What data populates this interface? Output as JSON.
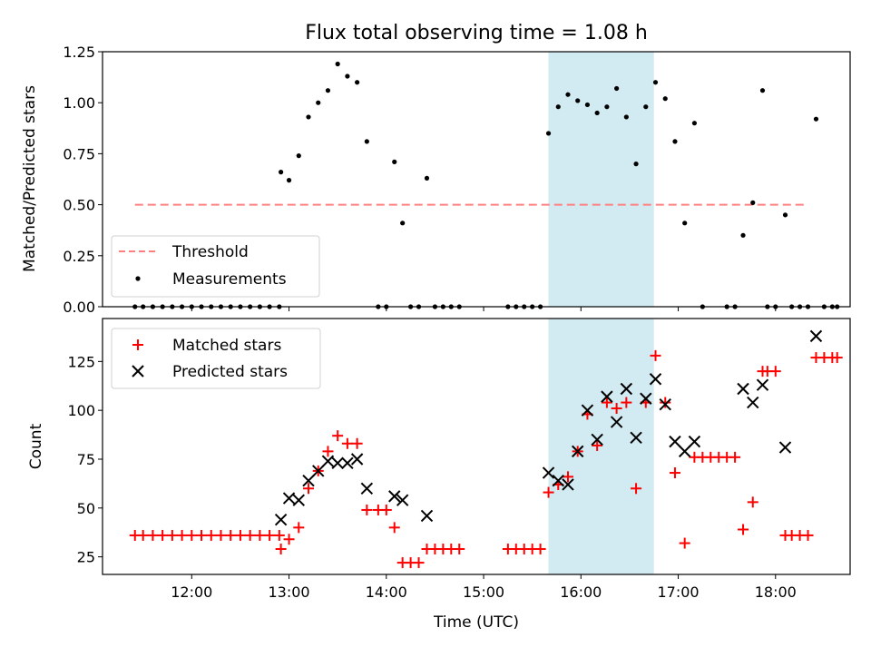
{
  "title": "Flux total observing time = 1.08 h",
  "xlabel": "Time (UTC)",
  "x_tick_labels": [
    "12:00",
    "13:00",
    "14:00",
    "15:00",
    "16:00",
    "17:00",
    "18:00"
  ],
  "colors": {
    "highlight": "#add8e6",
    "threshold": "#ff8080",
    "measurements": "#000000",
    "matched": "#ff0000",
    "predicted": "#000000"
  },
  "chart_data": [
    {
      "type": "scatter",
      "ylabel": "Matched/Predicted stars",
      "ylim": [
        0,
        1.25
      ],
      "xlim": [
        "11:05",
        "18:46"
      ],
      "y_tick_labels": [
        "0.00",
        "0.25",
        "0.50",
        "0.75",
        "1.00",
        "1.25"
      ],
      "grid": false,
      "legend_position": "lower-left",
      "highlight_span": {
        "start": "15:40",
        "end": "16:45"
      },
      "threshold": {
        "name": "Threshold",
        "value": 0.5,
        "x_range": [
          "11:25",
          "18:20"
        ],
        "style": "dashed"
      },
      "series": [
        {
          "name": "Measurements",
          "marker": "dot",
          "points": [
            [
              "11:25",
              0
            ],
            [
              "11:30",
              0
            ],
            [
              "11:36",
              0
            ],
            [
              "11:42",
              0
            ],
            [
              "11:48",
              0
            ],
            [
              "11:54",
              0
            ],
            [
              "12:00",
              0
            ],
            [
              "12:06",
              0
            ],
            [
              "12:12",
              0
            ],
            [
              "12:18",
              0
            ],
            [
              "12:24",
              0
            ],
            [
              "12:30",
              0
            ],
            [
              "12:36",
              0
            ],
            [
              "12:42",
              0
            ],
            [
              "12:48",
              0
            ],
            [
              "12:54",
              0
            ],
            [
              "12:55",
              0.66
            ],
            [
              "13:00",
              0.62
            ],
            [
              "13:06",
              0.74
            ],
            [
              "13:12",
              0.93
            ],
            [
              "13:18",
              1.0
            ],
            [
              "13:24",
              1.06
            ],
            [
              "13:30",
              1.19
            ],
            [
              "13:36",
              1.13
            ],
            [
              "13:42",
              1.1
            ],
            [
              "13:48",
              0.81
            ],
            [
              "13:55",
              0
            ],
            [
              "14:00",
              0
            ],
            [
              "14:05",
              0.71
            ],
            [
              "14:10",
              0.41
            ],
            [
              "14:15",
              0
            ],
            [
              "14:20",
              0
            ],
            [
              "14:25",
              0.63
            ],
            [
              "14:30",
              0
            ],
            [
              "14:35",
              0
            ],
            [
              "14:40",
              0
            ],
            [
              "14:45",
              0
            ],
            [
              "15:15",
              0
            ],
            [
              "15:20",
              0
            ],
            [
              "15:25",
              0
            ],
            [
              "15:30",
              0
            ],
            [
              "15:35",
              0
            ],
            [
              "15:40",
              0.85
            ],
            [
              "15:46",
              0.98
            ],
            [
              "15:52",
              1.04
            ],
            [
              "15:58",
              1.01
            ],
            [
              "16:04",
              0.99
            ],
            [
              "16:10",
              0.95
            ],
            [
              "16:16",
              0.98
            ],
            [
              "16:22",
              1.07
            ],
            [
              "16:28",
              0.93
            ],
            [
              "16:34",
              0.7
            ],
            [
              "16:40",
              0.98
            ],
            [
              "16:46",
              1.1
            ],
            [
              "16:52",
              1.02
            ],
            [
              "16:58",
              0.81
            ],
            [
              "17:04",
              0.41
            ],
            [
              "17:10",
              0.9
            ],
            [
              "17:15",
              0
            ],
            [
              "17:30",
              0
            ],
            [
              "17:35",
              0
            ],
            [
              "17:40",
              0.35
            ],
            [
              "17:46",
              0.51
            ],
            [
              "17:52",
              1.06
            ],
            [
              "17:55",
              0
            ],
            [
              "18:00",
              0
            ],
            [
              "18:06",
              0.45
            ],
            [
              "18:10",
              0
            ],
            [
              "18:15",
              0
            ],
            [
              "18:20",
              0
            ],
            [
              "18:25",
              0.92
            ],
            [
              "18:30",
              0
            ],
            [
              "18:35",
              0
            ],
            [
              "18:38",
              0
            ]
          ]
        }
      ]
    },
    {
      "type": "scatter",
      "ylabel": "Count",
      "ylim": [
        16,
        147
      ],
      "xlim": [
        "11:05",
        "18:46"
      ],
      "y_tick_labels": [
        "25",
        "50",
        "75",
        "100",
        "125"
      ],
      "grid": false,
      "legend_position": "upper-left",
      "highlight_span": {
        "start": "15:40",
        "end": "16:45"
      },
      "series": [
        {
          "name": "Matched stars",
          "marker": "plus",
          "points": [
            [
              "11:25",
              36
            ],
            [
              "11:30",
              36
            ],
            [
              "11:36",
              36
            ],
            [
              "11:42",
              36
            ],
            [
              "11:48",
              36
            ],
            [
              "11:54",
              36
            ],
            [
              "12:00",
              36
            ],
            [
              "12:06",
              36
            ],
            [
              "12:12",
              36
            ],
            [
              "12:18",
              36
            ],
            [
              "12:24",
              36
            ],
            [
              "12:30",
              36
            ],
            [
              "12:36",
              36
            ],
            [
              "12:42",
              36
            ],
            [
              "12:48",
              36
            ],
            [
              "12:54",
              36
            ],
            [
              "12:55",
              29
            ],
            [
              "13:00",
              34
            ],
            [
              "13:06",
              40
            ],
            [
              "13:12",
              60
            ],
            [
              "13:18",
              69
            ],
            [
              "13:24",
              79
            ],
            [
              "13:30",
              87
            ],
            [
              "13:36",
              83
            ],
            [
              "13:42",
              83
            ],
            [
              "13:48",
              49
            ],
            [
              "13:55",
              49
            ],
            [
              "14:00",
              49
            ],
            [
              "14:05",
              40
            ],
            [
              "14:10",
              22
            ],
            [
              "14:15",
              22
            ],
            [
              "14:20",
              22
            ],
            [
              "14:25",
              29
            ],
            [
              "14:30",
              29
            ],
            [
              "14:35",
              29
            ],
            [
              "14:40",
              29
            ],
            [
              "14:45",
              29
            ],
            [
              "15:15",
              29
            ],
            [
              "15:20",
              29
            ],
            [
              "15:25",
              29
            ],
            [
              "15:30",
              29
            ],
            [
              "15:35",
              29
            ],
            [
              "15:40",
              58
            ],
            [
              "15:46",
              62
            ],
            [
              "15:52",
              66
            ],
            [
              "15:58",
              79
            ],
            [
              "16:04",
              98
            ],
            [
              "16:10",
              82
            ],
            [
              "16:16",
              104
            ],
            [
              "16:22",
              101
            ],
            [
              "16:28",
              104
            ],
            [
              "16:34",
              60
            ],
            [
              "16:40",
              104
            ],
            [
              "16:46",
              128
            ],
            [
              "16:52",
              104
            ],
            [
              "16:58",
              68
            ],
            [
              "17:04",
              32
            ],
            [
              "17:10",
              76
            ],
            [
              "17:15",
              76
            ],
            [
              "17:20",
              76
            ],
            [
              "17:25",
              76
            ],
            [
              "17:30",
              76
            ],
            [
              "17:35",
              76
            ],
            [
              "17:40",
              39
            ],
            [
              "17:46",
              53
            ],
            [
              "17:52",
              120
            ],
            [
              "17:55",
              120
            ],
            [
              "18:00",
              120
            ],
            [
              "18:06",
              36
            ],
            [
              "18:10",
              36
            ],
            [
              "18:15",
              36
            ],
            [
              "18:20",
              36
            ],
            [
              "18:25",
              127
            ],
            [
              "18:30",
              127
            ],
            [
              "18:35",
              127
            ],
            [
              "18:38",
              127
            ]
          ]
        },
        {
          "name": "Predicted stars",
          "marker": "x",
          "points": [
            [
              "12:55",
              44
            ],
            [
              "13:00",
              55
            ],
            [
              "13:06",
              54
            ],
            [
              "13:12",
              64
            ],
            [
              "13:18",
              69
            ],
            [
              "13:24",
              74
            ],
            [
              "13:30",
              73
            ],
            [
              "13:36",
              73
            ],
            [
              "13:42",
              75
            ],
            [
              "13:48",
              60
            ],
            [
              "14:05",
              56
            ],
            [
              "14:10",
              54
            ],
            [
              "14:25",
              46
            ],
            [
              "15:40",
              68
            ],
            [
              "15:46",
              64
            ],
            [
              "15:52",
              62
            ],
            [
              "15:58",
              79
            ],
            [
              "16:04",
              100
            ],
            [
              "16:10",
              85
            ],
            [
              "16:16",
              107
            ],
            [
              "16:22",
              94
            ],
            [
              "16:28",
              111
            ],
            [
              "16:34",
              86
            ],
            [
              "16:40",
              106
            ],
            [
              "16:46",
              116
            ],
            [
              "16:52",
              103
            ],
            [
              "16:58",
              84
            ],
            [
              "17:04",
              79
            ],
            [
              "17:10",
              84
            ],
            [
              "17:40",
              111
            ],
            [
              "17:46",
              104
            ],
            [
              "17:52",
              113
            ],
            [
              "18:06",
              81
            ],
            [
              "18:25",
              138
            ]
          ]
        }
      ]
    }
  ]
}
